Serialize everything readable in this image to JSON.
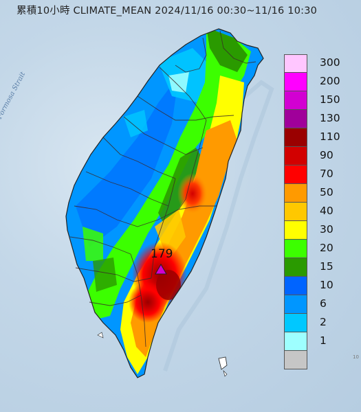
{
  "title": "累積10小時 CLIMATE_MEAN 2024/11/16 00:30~11/16 10:30",
  "sea_label": "Formosa Strait",
  "max_station": {
    "value": "179",
    "marker": "triangle-marker"
  },
  "corner_text": "10",
  "legend": [
    {
      "label": "300",
      "color": "#ffc6ff"
    },
    {
      "label": "200",
      "color": "#ff00ff"
    },
    {
      "label": "150",
      "color": "#d200d2"
    },
    {
      "label": "130",
      "color": "#a0009a"
    },
    {
      "label": "110",
      "color": "#9a0000"
    },
    {
      "label": "90",
      "color": "#d20000"
    },
    {
      "label": "70",
      "color": "#ff0000"
    },
    {
      "label": "50",
      "color": "#ff9a00"
    },
    {
      "label": "40",
      "color": "#ffc800"
    },
    {
      "label": "30",
      "color": "#ffff00"
    },
    {
      "label": "20",
      "color": "#3cff00"
    },
    {
      "label": "15",
      "color": "#2a9a00"
    },
    {
      "label": "10",
      "color": "#0064ff"
    },
    {
      "label": "6",
      "color": "#0096ff"
    },
    {
      "label": "2",
      "color": "#00c8ff"
    },
    {
      "label": "1",
      "color": "#9effff"
    },
    {
      "label": "",
      "color": "#c6c6c6"
    }
  ]
}
